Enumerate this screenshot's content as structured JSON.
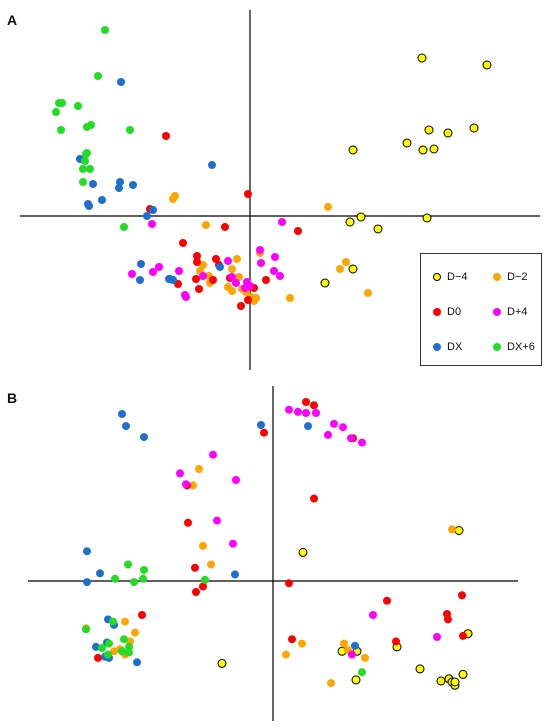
{
  "chart_data": [
    {
      "type": "scatter",
      "panel_label": "A",
      "xlim": [
        -230,
        290
      ],
      "ylim": [
        -155,
        205
      ],
      "legend": {
        "placement": "bottom-right",
        "entries": [
          {
            "label": "D−4",
            "series": "D-4"
          },
          {
            "label": "D−2",
            "series": "D-2"
          },
          {
            "label": "D0",
            "series": "D0"
          },
          {
            "label": "D+4",
            "series": "D+4"
          },
          {
            "label": "DX",
            "series": "DX"
          },
          {
            "label": "DX+6",
            "series": "DX+6"
          }
        ]
      },
      "series": [
        {
          "name": "D-4",
          "color": "#ffff00",
          "outline": "#000000",
          "x": [
            172,
            237,
            179,
            224,
            198,
            157,
            173,
            184,
            103,
            100,
            111,
            128,
            177,
            103,
            75
          ],
          "y": [
            158,
            151,
            86,
            88,
            83,
            73,
            66,
            67,
            66,
            -6,
            -1,
            -13,
            -2,
            -53,
            -67
          ]
        },
        {
          "name": "D-2",
          "color": "#ffa500",
          "x": [
            -75,
            -77,
            78,
            -44,
            10,
            -13,
            -47,
            -50,
            -18,
            -41,
            -40,
            -11,
            -8,
            -18,
            1,
            4,
            6,
            -4,
            96,
            118,
            40,
            90,
            -22
          ],
          "y": [
            20,
            17,
            9,
            -9,
            -37,
            -43,
            -49,
            -55,
            -53,
            -60,
            -67,
            -61,
            -73,
            -75,
            -81,
            -85,
            -82,
            -76,
            -46,
            -77,
            -82,
            -53,
            -71
          ]
        },
        {
          "name": "D0",
          "color": "#ff0000",
          "x": [
            -84,
            -100,
            -2,
            -25,
            -67,
            -53,
            -34,
            -31,
            -37,
            -54,
            -72,
            -51,
            -20,
            4,
            16,
            48,
            -53,
            -2,
            -9
          ],
          "y": [
            80,
            7,
            22,
            -11,
            -27,
            -40,
            -43,
            -49,
            -64,
            -63,
            -68,
            -73,
            -62,
            -72,
            -64,
            -15,
            -46,
            -84,
            -90
          ]
        },
        {
          "name": "D+4",
          "color": "#ff00ff",
          "x": [
            32,
            -98,
            10,
            25,
            11,
            -118,
            -97,
            -91,
            -71,
            -22,
            -18,
            24,
            30,
            -14,
            0,
            -3,
            -5,
            -64,
            -65,
            -47
          ],
          "y": [
            -6,
            -8,
            -34,
            -41,
            -47,
            -58,
            -56,
            -51,
            -55,
            -45,
            -61,
            -55,
            -60,
            -67,
            -70,
            -66,
            -72,
            -81,
            -79,
            -60
          ]
        },
        {
          "name": "DX",
          "color": "#1f6fd1",
          "x": [
            -129,
            -38,
            -170,
            -157,
            -117,
            -131,
            -130,
            -162,
            -148,
            -161,
            -97,
            -103,
            -109,
            -80,
            -30,
            -110,
            -81,
            -77
          ],
          "y": [
            134,
            51,
            57,
            32,
            31,
            28,
            34,
            12,
            16,
            10,
            6,
            0,
            -48,
            -63,
            -51,
            -64,
            -63,
            -64
          ]
        },
        {
          "name": "DX+6",
          "color": "#22dd22",
          "x": [
            -145,
            -152,
            -191,
            -188,
            -194,
            -172,
            -163,
            -159,
            -189,
            -120,
            -163,
            -165,
            -167,
            -160,
            -164,
            -167,
            -126
          ],
          "y": [
            186,
            140,
            113,
            113,
            104,
            110,
            89,
            91,
            86,
            86,
            63,
            55,
            47,
            47,
            62,
            34,
            -11
          ]
        }
      ]
    },
    {
      "type": "scatter",
      "panel_label": "B",
      "xlim": [
        -245,
        245
      ],
      "ylim": [
        -140,
        165
      ],
      "series": [
        {
          "name": "D-4",
          "color": "#ffff00",
          "outline": "#000000",
          "x": [
            186,
            30,
            195,
            -51,
            84,
            124,
            147,
            176,
            179,
            182,
            190,
            168,
            182,
            69,
            83
          ],
          "y": [
            46,
            26,
            -48,
            -75,
            -64,
            -60,
            -80,
            -89,
            -92,
            -95,
            -85,
            -91,
            -92,
            -64,
            -90
          ]
        },
        {
          "name": "D-2",
          "color": "#ffa500",
          "x": [
            -74,
            -80,
            -70,
            -62,
            -187,
            -148,
            -138,
            -143,
            -153,
            -159,
            -148,
            179,
            71,
            92,
            29,
            13,
            75,
            58
          ],
          "y": [
            102,
            87,
            32,
            15,
            -43,
            -37,
            -47,
            -55,
            -62,
            -64,
            -67,
            47,
            -57,
            -70,
            -57,
            -67,
            -63,
            -93
          ]
        },
        {
          "name": "D0",
          "color": "#ff0000",
          "x": [
            -9,
            33,
            41,
            80,
            -86,
            -85,
            -78,
            -70,
            41,
            16,
            114,
            174,
            175,
            190,
            19,
            123,
            189,
            -131,
            -175,
            -77
          ],
          "y": [
            135,
            163,
            160,
            130,
            87,
            53,
            12,
            -5,
            75,
            -2,
            -18,
            -30,
            -35,
            -50,
            -53,
            -55,
            -13,
            -31,
            -70,
            -10
          ]
        },
        {
          "name": "D+4",
          "color": "#ff00ff",
          "x": [
            16,
            25,
            33,
            43,
            61,
            70,
            55,
            78,
            89,
            -60,
            -93,
            -87,
            -37,
            -56,
            -40,
            100,
            164,
            79
          ],
          "y": [
            156,
            154,
            153,
            153,
            143,
            140,
            133,
            130,
            126,
            115,
            98,
            88,
            92,
            55,
            34,
            -31,
            -51,
            -67
          ]
        },
        {
          "name": "DX",
          "color": "#1f6fd1",
          "x": [
            -151,
            -147,
            -129,
            35,
            -12,
            -186,
            -173,
            -186,
            -165,
            -159,
            -38,
            -166,
            -168,
            -177,
            -164,
            -136,
            82
          ],
          "y": [
            152,
            141,
            131,
            141,
            142,
            27,
            7,
            -1,
            -35,
            -40,
            6,
            -56,
            -69,
            -60,
            -70,
            -74,
            -59
          ]
        },
        {
          "name": "DX+6",
          "color": "#22dd22",
          "x": [
            -145,
            -129,
            -158,
            -130,
            -139,
            -68,
            -160,
            -187,
            -149,
            -164,
            -151,
            -144,
            -171,
            -145,
            -165,
            -144,
            89
          ],
          "y": [
            15,
            10,
            2,
            2,
            -1,
            1,
            -37,
            -44,
            -53,
            -57,
            -64,
            -60,
            -61,
            -65,
            -67,
            -65,
            -83
          ]
        }
      ]
    }
  ]
}
